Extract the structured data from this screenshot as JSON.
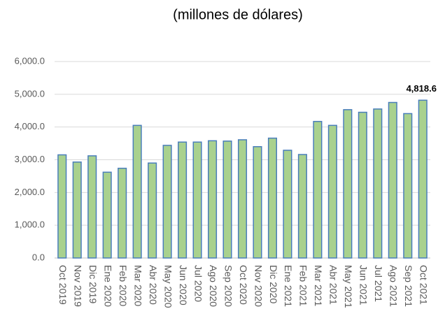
{
  "chart_data": {
    "type": "bar",
    "title": "(millones  de dólares)",
    "categories": [
      "Oct 2019",
      "Nov 2019",
      "Dic 2019",
      "Ene 2020",
      "Feb 2020",
      "Mar 2020",
      "Abr 2020",
      "May 2020",
      "Jun 2020",
      "Jul 2020",
      "Ago 2020",
      "Sep 2020",
      "Oct 2020",
      "Nov 2020",
      "Dic 2020",
      "Ene 2021",
      "Feb 2021",
      "Mar 2021",
      "Abr 2021",
      "May 2021",
      "Jun 2021",
      "Jul 2021",
      "Ago 2021",
      "Sep 2021",
      "Oct 2021"
    ],
    "values": [
      3150,
      2930,
      3120,
      2620,
      2740,
      4050,
      2900,
      3440,
      3540,
      3540,
      3580,
      3570,
      3610,
      3400,
      3660,
      3290,
      3160,
      4170,
      4050,
      4530,
      4450,
      4550,
      4750,
      4410,
      4818.6
    ],
    "value_labels": [
      null,
      null,
      null,
      null,
      null,
      null,
      null,
      null,
      null,
      null,
      null,
      null,
      null,
      null,
      null,
      null,
      null,
      null,
      null,
      null,
      null,
      null,
      null,
      null,
      "4,818.6"
    ],
    "color": "#a9d18e",
    "edge_color": "#4a7ebb",
    "ylim": [
      0,
      6000
    ],
    "yticks": [
      {
        "value": 0,
        "label": "0.0"
      },
      {
        "value": 1000,
        "label": "1,000.0"
      },
      {
        "value": 2000,
        "label": "2,000.0"
      },
      {
        "value": 3000,
        "label": "3,000.0"
      },
      {
        "value": 4000,
        "label": "4,000.0"
      },
      {
        "value": 5000,
        "label": "5,000.0"
      },
      {
        "value": 6000,
        "label": "6,000.0"
      }
    ],
    "grid": true
  }
}
